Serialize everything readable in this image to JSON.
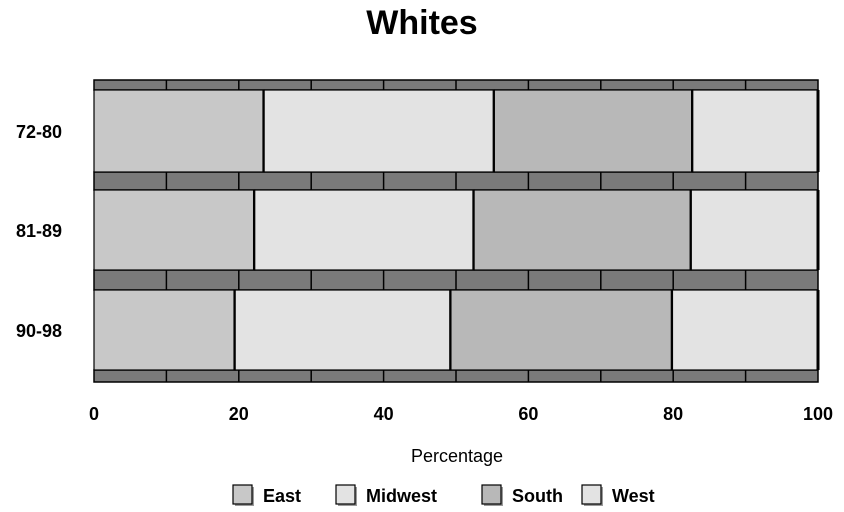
{
  "chart_data": {
    "type": "bar",
    "orientation": "horizontal",
    "stacked": true,
    "title": "Whites",
    "xlabel": "Percentage",
    "ylabel": "",
    "xlim": [
      0,
      100
    ],
    "x_ticks": [
      "0",
      "20",
      "40",
      "60",
      "80",
      "100"
    ],
    "categories": [
      "72-80",
      "81-89",
      "90-98"
    ],
    "series": [
      {
        "name": "East",
        "values": [
          23.5,
          22.2,
          19.5
        ],
        "color": "#c8c8c8"
      },
      {
        "name": "Midwest",
        "values": [
          31.8,
          30.3,
          29.8
        ],
        "color": "#e3e3e3"
      },
      {
        "name": "South",
        "values": [
          27.4,
          30.0,
          30.6
        ],
        "color": "#b8b8b8"
      },
      {
        "name": "West",
        "values": [
          17.3,
          17.5,
          20.1
        ],
        "color": "#e3e3e3"
      }
    ],
    "grid": false,
    "legend_position": "bottom"
  }
}
